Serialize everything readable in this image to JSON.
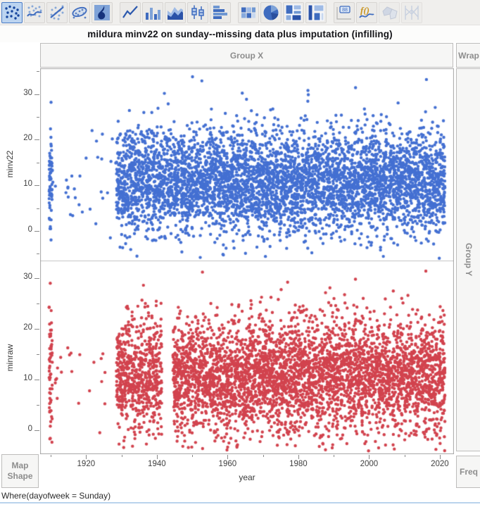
{
  "title": "mildura minv22 on sunday--missing data plus imputation (infilling)",
  "toolbar": {
    "icons": [
      {
        "name": "points",
        "selected": true,
        "enabled": true
      },
      {
        "name": "smoother",
        "selected": false,
        "enabled": true
      },
      {
        "name": "line-of-fit",
        "selected": false,
        "enabled": true
      },
      {
        "name": "ellipse",
        "selected": false,
        "enabled": true
      },
      {
        "name": "contour",
        "selected": false,
        "enabled": true
      },
      {
        "name": "line",
        "selected": false,
        "enabled": true
      },
      {
        "name": "bar",
        "selected": false,
        "enabled": true
      },
      {
        "name": "area",
        "selected": false,
        "enabled": true
      },
      {
        "name": "box-plot",
        "selected": false,
        "enabled": true
      },
      {
        "name": "histogram",
        "selected": false,
        "enabled": true
      },
      {
        "name": "heatmap",
        "selected": false,
        "enabled": true
      },
      {
        "name": "pie",
        "selected": false,
        "enabled": true
      },
      {
        "name": "treemap",
        "selected": false,
        "enabled": true
      },
      {
        "name": "mosaic",
        "selected": false,
        "enabled": true
      },
      {
        "name": "caption-box",
        "selected": false,
        "enabled": true
      },
      {
        "name": "formula",
        "selected": false,
        "enabled": true
      },
      {
        "name": "map-shapes",
        "selected": false,
        "enabled": false
      },
      {
        "name": "parallel-plot",
        "selected": false,
        "enabled": false
      }
    ]
  },
  "zones": {
    "group_x": "Group X",
    "wrap": "Wrap",
    "group_y": "Group Y",
    "freq": "Freq",
    "map_shape_line1": "Map",
    "map_shape_line2": "Shape"
  },
  "status_bar": "Where(dayofweek = Sunday)",
  "chart_data": {
    "type": "scatter",
    "seed": 42,
    "marker_radius_px": 2.2,
    "jitter_years": 0.45,
    "x_axis": {
      "label": "year",
      "range": [
        1907,
        2024
      ],
      "major_ticks": [
        1920,
        1940,
        1960,
        1980,
        2000,
        2020
      ],
      "minor_ticks": [
        1910,
        1930,
        1950,
        1970,
        1990,
        2010
      ]
    },
    "panels": [
      {
        "y_label": "minv22",
        "color": "#4470d2",
        "value_range": [
          -6.5,
          35.5
        ],
        "major_ticks": [
          0,
          10,
          20,
          30
        ],
        "minor_ticks": [
          -5,
          5,
          15,
          25,
          35
        ],
        "distribution": {
          "mean": 10.8,
          "sd": 5.6
        },
        "segments": [
          {
            "from": 1910,
            "to": 1910,
            "per_year": 60
          },
          {
            "from": 1911,
            "to": 1928,
            "per_year_max": 3
          },
          {
            "from": 1929,
            "to": 2021,
            "per_year": 52
          }
        ],
        "gap_years": [],
        "outliers": [
          [
            1950,
            33.8
          ],
          [
            1953,
            32.9
          ],
          [
            1996,
            31.4
          ],
          [
            2016,
            33.2
          ],
          [
            1983,
            30.8
          ],
          [
            1910,
            28.2
          ],
          [
            1964,
            30.2
          ],
          [
            1971,
            -5.6
          ],
          [
            1984,
            -4.8
          ],
          [
            2003,
            -4.2
          ]
        ]
      },
      {
        "y_label": "minraw",
        "color": "#d2434e",
        "value_range": [
          -4.6,
          33.2
        ],
        "major_ticks": [
          0,
          10,
          20,
          30
        ],
        "minor_ticks": [
          -5,
          5,
          15,
          25,
          35
        ],
        "distribution": {
          "mean": 10.8,
          "sd": 5.6
        },
        "segments": [
          {
            "from": 1910,
            "to": 1910,
            "per_year": 60
          },
          {
            "from": 1911,
            "to": 1928,
            "per_year_max": 3
          },
          {
            "from": 1929,
            "to": 2021,
            "per_year": 52
          }
        ],
        "gap_years": [
          1942,
          1943,
          1944
        ],
        "outliers": [
          [
            1910,
            29.0
          ],
          [
            1953,
            31.2
          ],
          [
            1996,
            29.8
          ],
          [
            2016,
            31.4
          ],
          [
            1977,
            29.2
          ],
          [
            1936,
            28.6
          ],
          [
            2007,
            -2.9
          ],
          [
            1986,
            -3.2
          ]
        ]
      }
    ]
  }
}
